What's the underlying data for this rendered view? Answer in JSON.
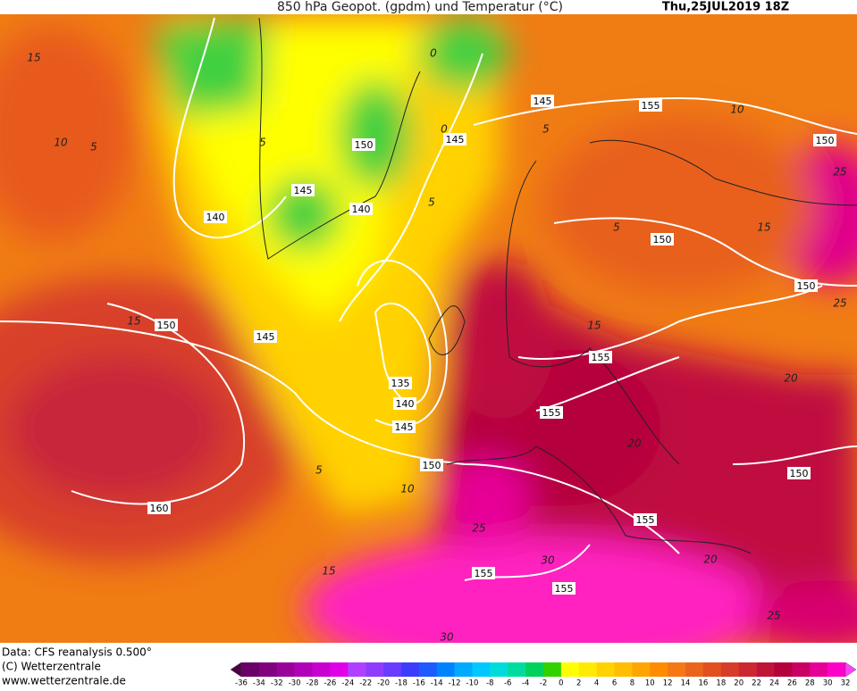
{
  "header": {
    "title": "850 hPa Geopot. (gpdm) und Temperatur (°C)",
    "date": "Thu,25JUL2019 18Z"
  },
  "footer": {
    "source": "Data: CFS reanalysis 0.500°",
    "copyright": "(C) Wetterzentrale",
    "url": "www.wetterzentrale.de"
  },
  "contour_labels": [
    "145",
    "155",
    "150",
    "145",
    "150",
    "145",
    "140",
    "140",
    "150",
    "150",
    "150",
    "145",
    "155",
    "135",
    "140",
    "155",
    "145",
    "150",
    "150",
    "160",
    "155",
    "155",
    "155"
  ],
  "isotherm_labels": [
    "15",
    "10",
    "5",
    "5",
    "0",
    "0",
    "5",
    "5",
    "10",
    "15",
    "5",
    "15",
    "15",
    "15",
    "10",
    "5",
    "25",
    "30",
    "20",
    "25",
    "30",
    "20",
    "25",
    "25",
    "20"
  ],
  "legend": {
    "values": [
      -36,
      -34,
      -32,
      -30,
      -28,
      -26,
      -24,
      -22,
      -20,
      -18,
      -16,
      -14,
      -12,
      -10,
      -8,
      -6,
      -4,
      -2,
      0,
      2,
      4,
      6,
      8,
      10,
      12,
      14,
      16,
      18,
      20,
      22,
      24,
      26,
      28,
      30,
      32
    ],
    "colors": [
      "#4b0040",
      "#6a0068",
      "#80007f",
      "#9a009a",
      "#b000b8",
      "#c800d0",
      "#e000e8",
      "#b040ff",
      "#8f3cff",
      "#6a3cff",
      "#3c3cff",
      "#1e5aff",
      "#0082ff",
      "#00aaff",
      "#00c8ff",
      "#00dcdc",
      "#00dca0",
      "#00d25a",
      "#32d200",
      "#ffff00",
      "#ffeb00",
      "#ffd200",
      "#ffbe00",
      "#ffa500",
      "#ff8c00",
      "#f57814",
      "#eb641e",
      "#e1501e",
      "#d73c28",
      "#cd2832",
      "#be1437",
      "#b4003c",
      "#c80064",
      "#e60096",
      "#ff00c8",
      "#ff40ff"
    ]
  }
}
